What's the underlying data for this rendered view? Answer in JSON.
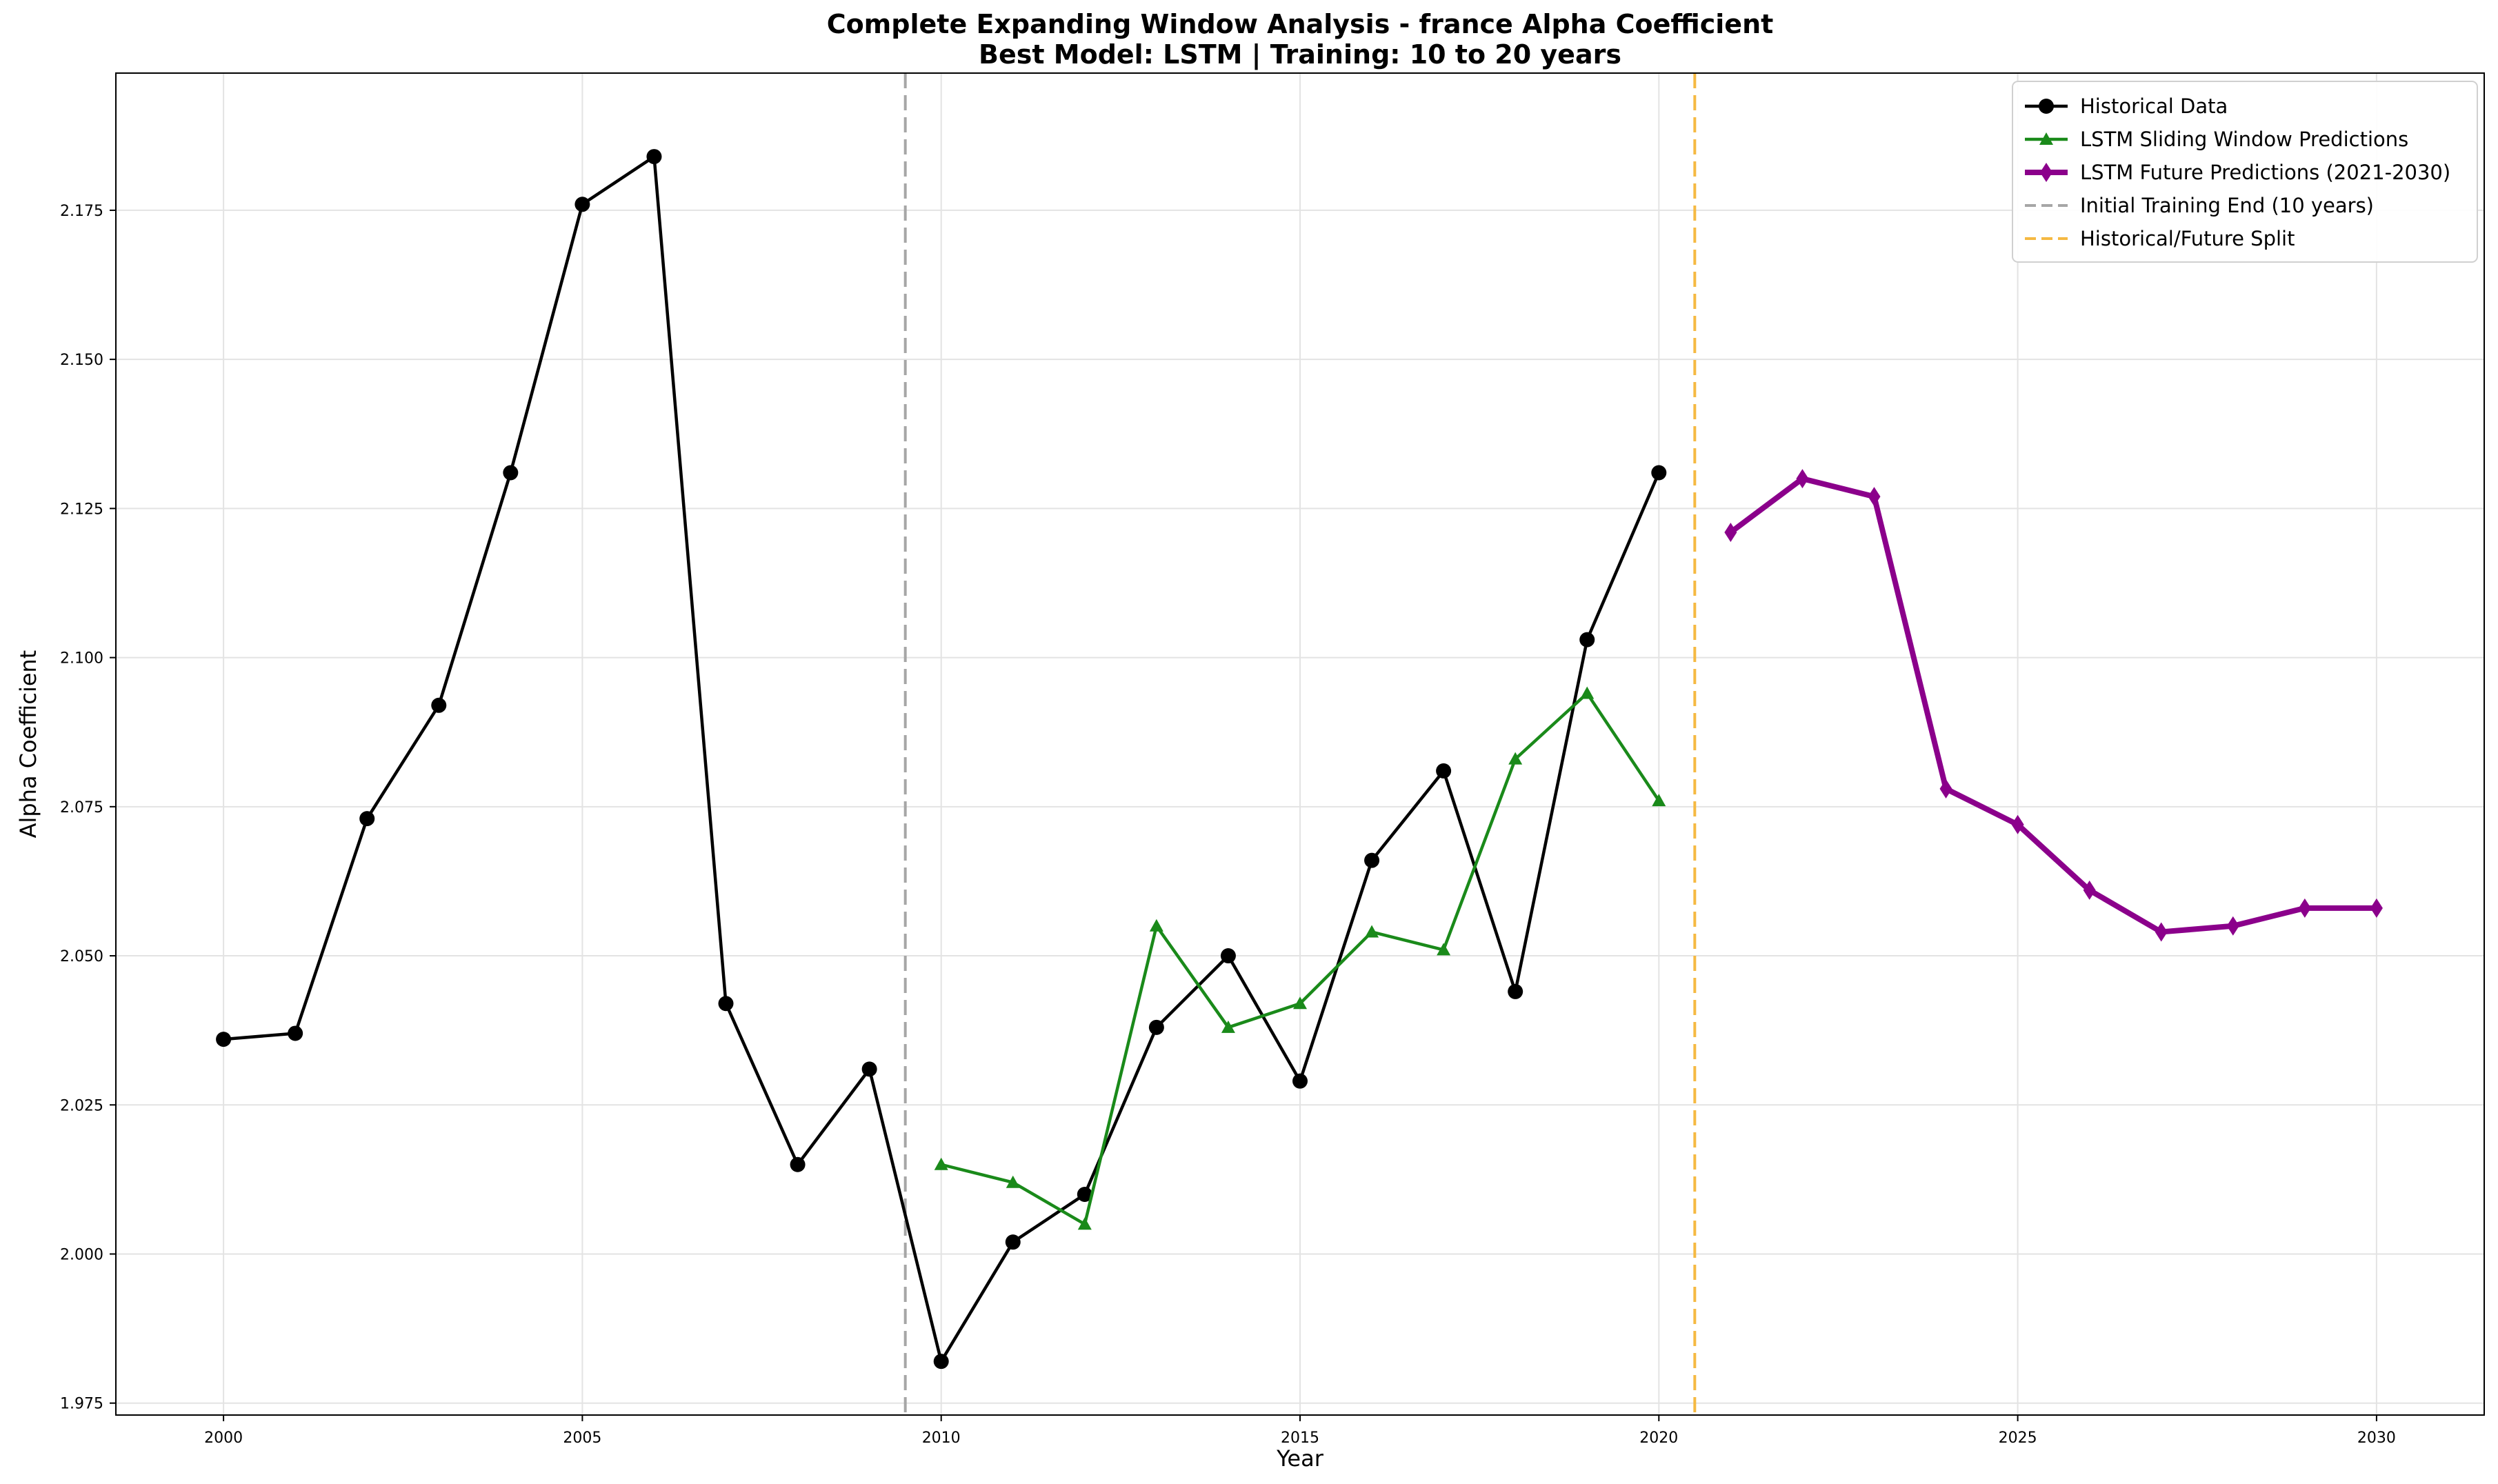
{
  "chart_data": {
    "type": "line",
    "title": "Complete Expanding Window Analysis - france Alpha Coefficient",
    "subtitle": "Best Model: LSTM | Training: 10 to 20 years",
    "xlabel": "Year",
    "ylabel": "Alpha Coefficient",
    "xlim": [
      1998.5,
      2031.5
    ],
    "ylim": [
      1.973,
      2.198
    ],
    "xticks": [
      "2000",
      "2005",
      "2010",
      "2015",
      "2020",
      "2025",
      "2030"
    ],
    "yticks": [
      "1.975",
      "2.000",
      "2.025",
      "2.050",
      "2.075",
      "2.100",
      "2.125",
      "2.150",
      "2.175"
    ],
    "grid": true,
    "legend_position": "top-right",
    "series": [
      {
        "name": "Historical Data",
        "color": "#000000",
        "marker": "circle",
        "x": [
          2000,
          2001,
          2002,
          2003,
          2004,
          2005,
          2006,
          2007,
          2008,
          2009,
          2010,
          2011,
          2012,
          2013,
          2014,
          2015,
          2016,
          2017,
          2018,
          2019,
          2020
        ],
        "values": [
          2.036,
          2.037,
          2.073,
          2.092,
          2.131,
          2.176,
          2.184,
          2.042,
          2.015,
          2.031,
          1.982,
          2.002,
          2.01,
          2.038,
          2.05,
          2.029,
          2.066,
          2.081,
          2.044,
          2.103,
          2.131
        ]
      },
      {
        "name": "LSTM Sliding Window Predictions",
        "color": "#1a8a1a",
        "marker": "triangle",
        "x": [
          2010,
          2011,
          2012,
          2013,
          2014,
          2015,
          2016,
          2017,
          2018,
          2019,
          2020
        ],
        "values": [
          2.015,
          2.012,
          2.005,
          2.055,
          2.038,
          2.042,
          2.054,
          2.051,
          2.083,
          2.094,
          2.076
        ]
      },
      {
        "name": "LSTM Future Predictions (2021-2030)",
        "color": "#8b008b",
        "marker": "diamond",
        "x": [
          2021,
          2022,
          2023,
          2024,
          2025,
          2026,
          2027,
          2028,
          2029,
          2030
        ],
        "values": [
          2.121,
          2.13,
          2.127,
          2.078,
          2.072,
          2.061,
          2.054,
          2.055,
          2.058,
          2.058
        ]
      }
    ],
    "vlines": [
      {
        "name": "Initial Training End (10 years)",
        "x": 2009.5,
        "color": "#a6a6a6"
      },
      {
        "name": "Historical/Future Split",
        "x": 2020.5,
        "color": "#f5b942"
      }
    ]
  }
}
